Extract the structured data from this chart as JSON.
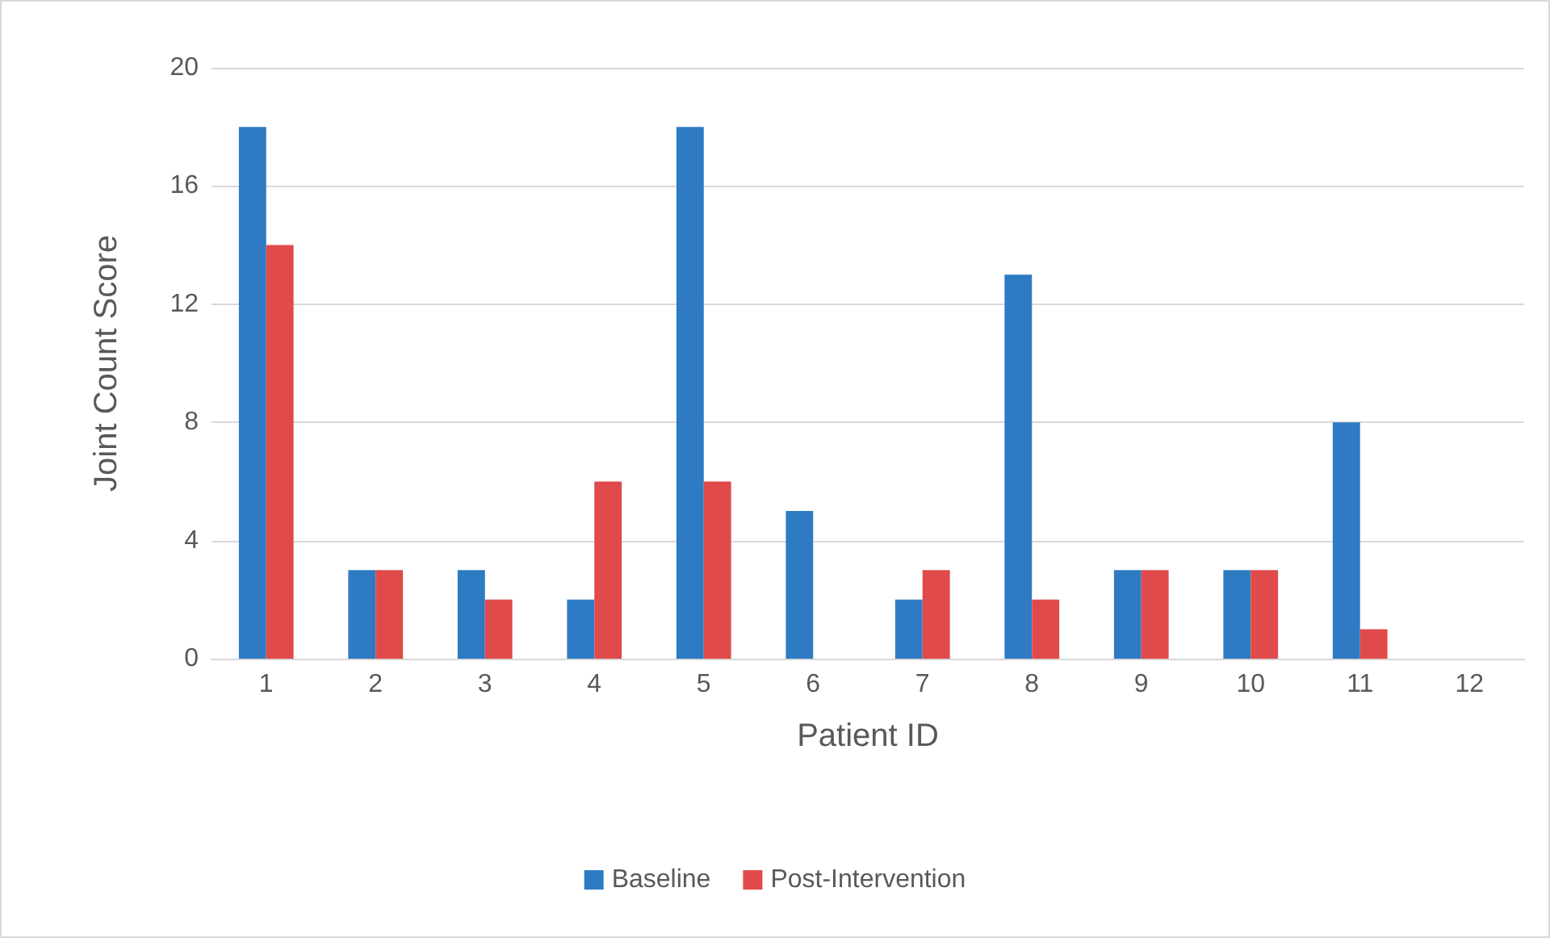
{
  "chart_data": {
    "type": "bar",
    "xlabel": "Patient ID",
    "ylabel": "Joint Count Score",
    "categories": [
      "1",
      "2",
      "3",
      "4",
      "5",
      "6",
      "7",
      "8",
      "9",
      "10",
      "11",
      "12"
    ],
    "series": [
      {
        "name": "Baseline",
        "color": "#2e7bc4",
        "values": [
          18,
          3,
          3,
          2,
          18,
          5,
          2,
          13,
          3,
          3,
          8,
          0
        ]
      },
      {
        "name": "Post-Intervention",
        "color": "#e04a4a",
        "values": [
          14,
          3,
          2,
          6,
          6,
          0,
          3,
          2,
          3,
          3,
          1,
          0
        ]
      }
    ],
    "ylim": [
      0,
      20
    ],
    "yticks": [
      0,
      4,
      8,
      12,
      16,
      20
    ],
    "grid": "y",
    "legend": "bottom"
  }
}
